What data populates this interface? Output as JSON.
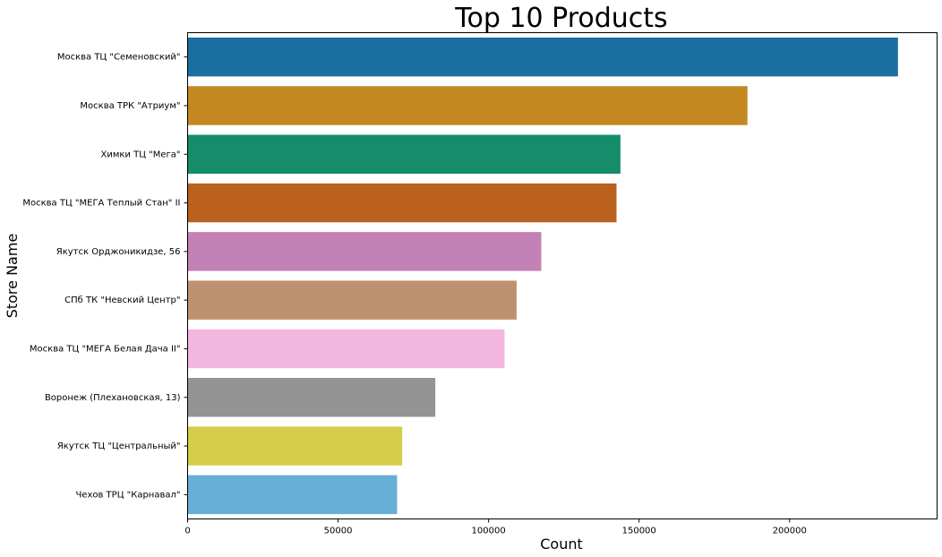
{
  "chart_data": {
    "type": "bar",
    "orientation": "horizontal",
    "title": "Top 10 Products",
    "xlabel": "Count",
    "ylabel": "Store Name",
    "xlim": [
      0,
      249000
    ],
    "xticks": [
      0,
      50000,
      100000,
      150000,
      200000
    ],
    "xtick_labels": [
      "0",
      "50000",
      "100000",
      "150000",
      "200000"
    ],
    "grid": false,
    "legend": "none",
    "categories": [
      "Москва ТЦ \"Семеновский\"",
      "Москва ТРК \"Атриум\"",
      "Химки ТЦ \"Мега\"",
      "Москва ТЦ \"МЕГА Теплый Стан\" II",
      "Якутск Орджоникидзе, 56",
      "СПб ТК \"Невский Центр\"",
      "Москва ТЦ \"МЕГА Белая Дача II\"",
      "Воронеж (Плехановская, 13)",
      "Якутск ТЦ \"Центральный\"",
      "Чехов ТРЦ \"Карнавал\""
    ],
    "values": [
      236000,
      186000,
      143800,
      142500,
      117500,
      109300,
      105300,
      82300,
      71300,
      69600
    ],
    "colors": [
      "#1a6ea0",
      "#c38820",
      "#168d6a",
      "#b9611d",
      "#c381b6",
      "#be9170",
      "#f3b6e0",
      "#949494",
      "#d6cd4b",
      "#68afd8"
    ]
  }
}
